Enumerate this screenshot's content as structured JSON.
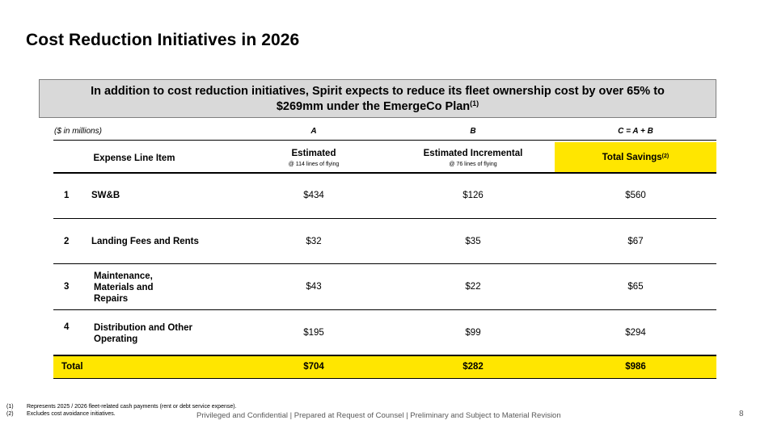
{
  "title": "Cost Reduction Initiatives in 2026",
  "callout": {
    "line1": "In addition to cost reduction initiatives, Spirit expects to reduce its fleet ownership cost by over 65% to",
    "line2": "$269mm under the EmergeCo Plan",
    "note": "(1)"
  },
  "table": {
    "units": "($ in millions)",
    "col_letters": [
      "A",
      "B",
      "C = A + B"
    ],
    "headers": {
      "item": "Expense Line Item",
      "estimated": "Estimated",
      "estimated_sub": "@ 114 lines of flying",
      "incremental": "Estimated Incremental",
      "incremental_sub": "@ 76 lines of flying",
      "total": "Total Savings",
      "total_note": "(2)"
    },
    "rows": [
      {
        "num": "1",
        "label": "SW&B",
        "a": "$434",
        "b": "$126",
        "c": "$560"
      },
      {
        "num": "2",
        "label": "Landing Fees and Rents",
        "a": "$32",
        "b": "$35",
        "c": "$67"
      },
      {
        "num": "3",
        "label_lines": [
          "Maintenance,",
          "Materials and",
          "Repairs"
        ],
        "a": "$43",
        "b": "$22",
        "c": "$65"
      },
      {
        "num": "4",
        "label_lines": [
          "Distribution and Other",
          "Operating"
        ],
        "a": "$195",
        "b": "$99",
        "c": "$294"
      }
    ],
    "total": {
      "label": "Total",
      "a": "$704",
      "b": "$282",
      "c": "$986"
    }
  },
  "footnotes": [
    {
      "mark": "(1)",
      "text": "Represents 2025 / 2026 fleet-related cash payments (rent or debt service expense)."
    },
    {
      "mark": "(2)",
      "text": "Excludes cost avoidance initiatives."
    }
  ],
  "confidential": "Privileged and Confidential | Prepared at Request of Counsel | Preliminary and Subject to Material Revision",
  "page_number": "8",
  "colors": {
    "highlight": "#ffe600",
    "callout_bg": "#d9d9d9"
  }
}
